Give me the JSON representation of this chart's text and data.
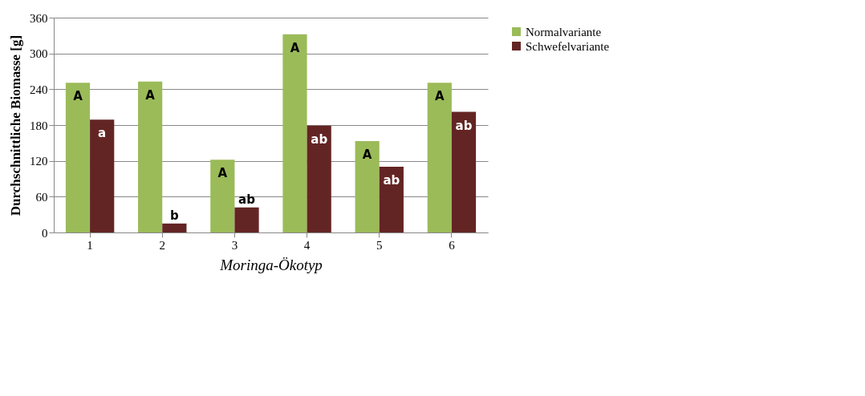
{
  "chart_data": {
    "type": "bar",
    "xlabel": "Moringa-Ökotyp",
    "ylabel": "Durchschnittliche Biomasse [g]",
    "categories": [
      "1",
      "2",
      "3",
      "4",
      "5",
      "6"
    ],
    "series": [
      {
        "name": "Normalvariante",
        "color": "#9bbb59",
        "values": [
          251,
          253,
          122,
          332,
          153,
          251
        ],
        "value_labels": [
          "A",
          "A",
          "A",
          "A",
          "A",
          "A"
        ]
      },
      {
        "name": "Schwefelvariante",
        "color": "#632523",
        "values": [
          189,
          15,
          42,
          179,
          110,
          202
        ],
        "value_labels": [
          "a",
          "b",
          "ab",
          "ab",
          "ab",
          "ab"
        ]
      }
    ],
    "ylim": [
      0,
      360
    ],
    "yticks": [
      0,
      60,
      120,
      180,
      240,
      300,
      360
    ],
    "grid": "y",
    "legend": "right"
  }
}
